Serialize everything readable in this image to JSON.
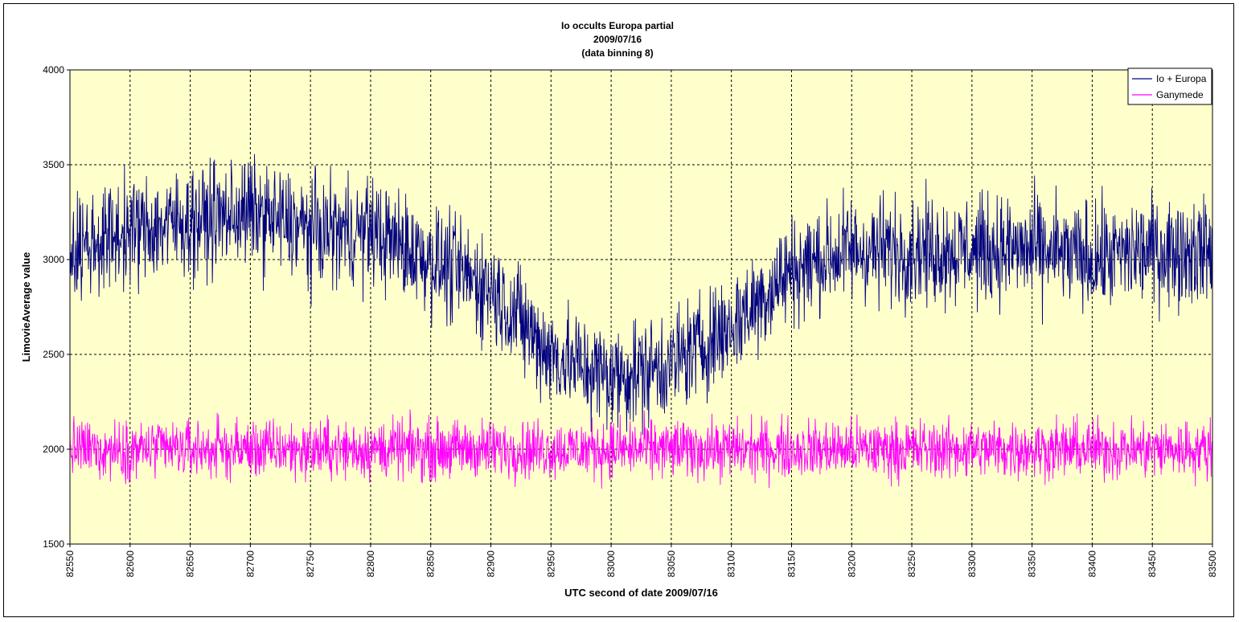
{
  "colors": {
    "plot_background": "#ffffcc",
    "grid": "#000000",
    "series_io_europa": "#000080",
    "series_ganymede": "#ff00ff"
  },
  "chart_data": {
    "type": "line",
    "title_lines": [
      "Io occults Europa partial",
      "2009/07/16",
      "(data binning 8)"
    ],
    "xlabel": "UTC second of date 2009/07/16",
    "ylabel": "LimovieAverage value",
    "xlim": [
      82550,
      83500
    ],
    "ylim": [
      1500,
      4000
    ],
    "x_ticks": [
      82550,
      82600,
      82650,
      82700,
      82750,
      82800,
      82850,
      82900,
      82950,
      83000,
      83050,
      83100,
      83150,
      83200,
      83250,
      83300,
      83350,
      83400,
      83450,
      83500
    ],
    "y_ticks": [
      1500,
      2000,
      2500,
      3000,
      3500,
      4000
    ],
    "grid": true,
    "legend_position": "top-right",
    "series": [
      {
        "name": "Io + Europa",
        "color": "#000080",
        "baseline_points": [
          {
            "x": 82550,
            "y": 3050
          },
          {
            "x": 82600,
            "y": 3150
          },
          {
            "x": 82650,
            "y": 3200
          },
          {
            "x": 82700,
            "y": 3250
          },
          {
            "x": 82750,
            "y": 3150
          },
          {
            "x": 82800,
            "y": 3150
          },
          {
            "x": 82850,
            "y": 3000
          },
          {
            "x": 82900,
            "y": 2850
          },
          {
            "x": 82950,
            "y": 2500
          },
          {
            "x": 83000,
            "y": 2380
          },
          {
            "x": 83050,
            "y": 2450
          },
          {
            "x": 83100,
            "y": 2650
          },
          {
            "x": 83150,
            "y": 2950
          },
          {
            "x": 83200,
            "y": 3050
          },
          {
            "x": 83250,
            "y": 3050
          },
          {
            "x": 83300,
            "y": 3050
          },
          {
            "x": 83350,
            "y": 3050
          },
          {
            "x": 83400,
            "y": 3000
          },
          {
            "x": 83450,
            "y": 3050
          },
          {
            "x": 83500,
            "y": 3050
          }
        ],
        "noise_amplitude": 220
      },
      {
        "name": "Ganymede",
        "color": "#ff00ff",
        "baseline_points": [
          {
            "x": 82550,
            "y": 2000
          },
          {
            "x": 83500,
            "y": 2000
          }
        ],
        "noise_amplitude": 120
      }
    ]
  }
}
